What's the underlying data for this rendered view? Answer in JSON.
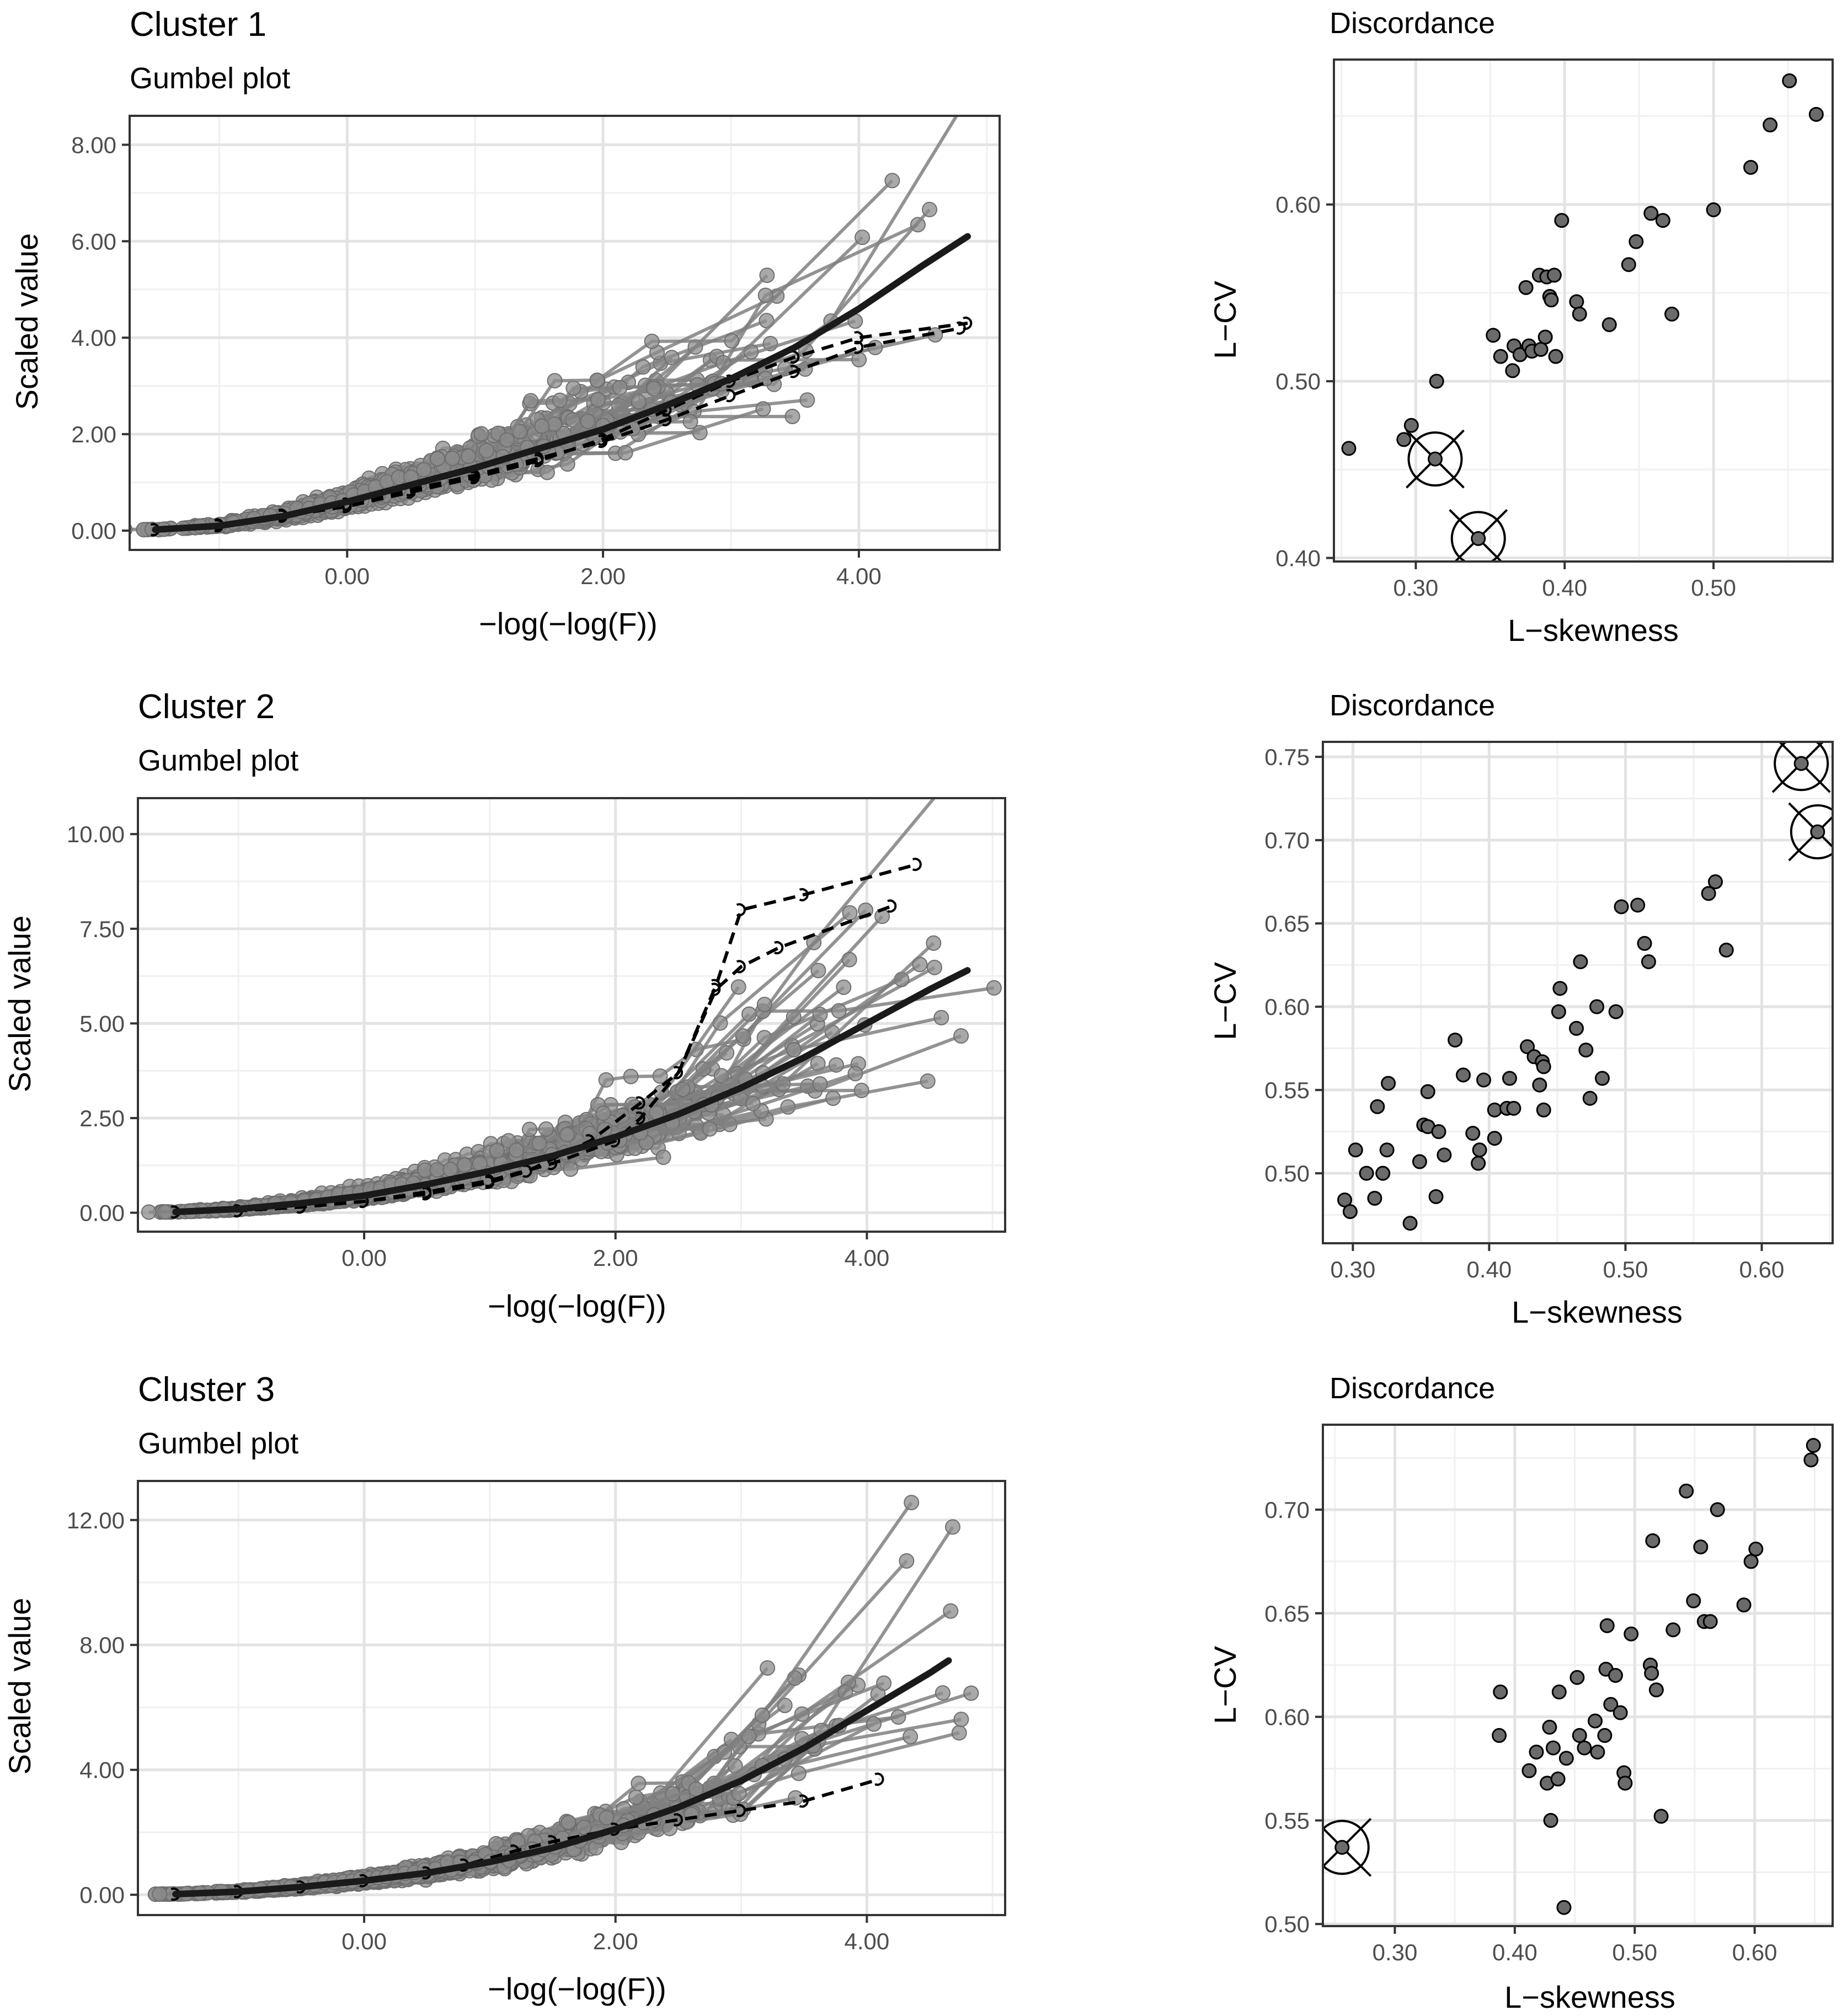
{
  "chart_data": [
    {
      "type": "line",
      "title": "Cluster 1",
      "subtitle": "Gumbel plot",
      "xlabel": "−log(−log(F))",
      "ylabel": "Scaled value",
      "xlim": [
        -1.7,
        5.1
      ],
      "ylim": [
        -0.4,
        8.6
      ],
      "x_ticks": [
        0,
        2,
        4
      ],
      "x_tick_labels": [
        "0.00",
        "2.00",
        "4.00"
      ],
      "y_ticks": [
        0,
        2,
        4,
        6,
        8
      ],
      "y_tick_labels": [
        "0.00",
        "2.00",
        "4.00",
        "6.00",
        "8.00"
      ],
      "grid": true,
      "series": [
        {
          "role": "fitted",
          "x": [
            -1.5,
            -1,
            -0.5,
            0,
            0.5,
            1,
            1.5,
            2,
            2.5,
            3,
            3.5,
            4,
            4.5,
            4.85
          ],
          "y": [
            0.02,
            0.1,
            0.3,
            0.6,
            0.95,
            1.3,
            1.7,
            2.1,
            2.6,
            3.15,
            3.8,
            4.6,
            5.5,
            6.1
          ]
        },
        {
          "role": "discordant",
          "x": [
            -1.5,
            -1,
            -0.5,
            0,
            0.5,
            1,
            1.5,
            2,
            2.5,
            3,
            3.5,
            4,
            4.8
          ],
          "y": [
            0.02,
            0.12,
            0.32,
            0.55,
            0.85,
            1.15,
            1.5,
            1.85,
            2.3,
            2.8,
            3.3,
            3.8,
            4.2
          ]
        },
        {
          "role": "discordant",
          "x": [
            -1.5,
            -1,
            -0.5,
            0,
            0.5,
            1,
            1.5,
            2,
            2.5,
            3,
            3.5,
            4,
            4.85
          ],
          "y": [
            0.02,
            0.1,
            0.3,
            0.5,
            0.8,
            1.1,
            1.45,
            1.9,
            2.5,
            3.1,
            3.6,
            4.0,
            4.3
          ]
        }
      ]
    },
    {
      "type": "scatter",
      "title": "Discordance",
      "xlabel": "L−skewness",
      "ylabel": "L−CV",
      "xlim": [
        0.245,
        0.58
      ],
      "ylim": [
        0.398,
        0.682
      ],
      "x_ticks": [
        0.3,
        0.4,
        0.5
      ],
      "x_tick_labels": [
        "0.30",
        "0.40",
        "0.50"
      ],
      "y_ticks": [
        0.4,
        0.5,
        0.6
      ],
      "y_tick_labels": [
        "0.40",
        "0.50",
        "0.60"
      ],
      "grid": true,
      "points": [
        [
          0.255,
          0.462
        ],
        [
          0.292,
          0.467
        ],
        [
          0.297,
          0.475
        ],
        [
          0.314,
          0.5
        ],
        [
          0.352,
          0.526
        ],
        [
          0.357,
          0.514
        ],
        [
          0.365,
          0.506
        ],
        [
          0.366,
          0.52
        ],
        [
          0.37,
          0.515
        ],
        [
          0.374,
          0.553
        ],
        [
          0.376,
          0.52
        ],
        [
          0.378,
          0.517
        ],
        [
          0.383,
          0.56
        ],
        [
          0.384,
          0.518
        ],
        [
          0.387,
          0.525
        ],
        [
          0.388,
          0.559
        ],
        [
          0.39,
          0.548
        ],
        [
          0.391,
          0.546
        ],
        [
          0.393,
          0.56
        ],
        [
          0.394,
          0.514
        ],
        [
          0.398,
          0.591
        ],
        [
          0.408,
          0.545
        ],
        [
          0.41,
          0.538
        ],
        [
          0.43,
          0.532
        ],
        [
          0.443,
          0.566
        ],
        [
          0.448,
          0.579
        ],
        [
          0.458,
          0.595
        ],
        [
          0.466,
          0.591
        ],
        [
          0.472,
          0.538
        ],
        [
          0.5,
          0.597
        ],
        [
          0.525,
          0.621
        ],
        [
          0.538,
          0.645
        ],
        [
          0.551,
          0.67
        ],
        [
          0.569,
          0.651
        ]
      ],
      "discordant_points": [
        [
          0.313,
          0.456
        ],
        [
          0.342,
          0.411
        ]
      ]
    },
    {
      "type": "line",
      "title": "Cluster 2",
      "subtitle": "Gumbel plot",
      "xlabel": "−log(−log(F))",
      "ylabel": "Scaled value",
      "xlim": [
        -1.8,
        5.1
      ],
      "ylim": [
        -0.5,
        10.95
      ],
      "x_ticks": [
        0,
        2,
        4
      ],
      "x_tick_labels": [
        "0.00",
        "2.00",
        "4.00"
      ],
      "y_ticks": [
        0,
        2.5,
        5,
        7.5,
        10
      ],
      "y_tick_labels": [
        "0.00",
        "2.50",
        "5.00",
        "7.50",
        "10.00"
      ],
      "grid": true,
      "series": [
        {
          "role": "fitted",
          "x": [
            -1.5,
            -1,
            -0.5,
            0,
            0.5,
            1,
            1.5,
            2,
            2.5,
            3,
            3.5,
            4,
            4.5,
            4.8
          ],
          "y": [
            0.02,
            0.1,
            0.25,
            0.45,
            0.75,
            1.1,
            1.5,
            2.0,
            2.6,
            3.3,
            4.1,
            5.0,
            5.9,
            6.4
          ]
        },
        {
          "role": "discordant",
          "x": [
            -1.5,
            -1,
            -0.5,
            0,
            0.5,
            1,
            1.3,
            1.8,
            2.2,
            2.5,
            2.8,
            3.0,
            3.5,
            4.4
          ],
          "y": [
            0.02,
            0.05,
            0.15,
            0.3,
            0.5,
            0.8,
            1.1,
            1.9,
            2.9,
            3.7,
            6.0,
            8.0,
            8.4,
            9.2
          ]
        },
        {
          "role": "discordant",
          "x": [
            -1.5,
            -1,
            -0.5,
            0,
            0.5,
            1,
            1.5,
            2,
            2.2,
            2.5,
            2.8,
            3.0,
            3.3,
            4.2
          ],
          "y": [
            0.02,
            0.05,
            0.15,
            0.3,
            0.55,
            0.85,
            1.3,
            1.9,
            2.5,
            3.7,
            5.9,
            6.5,
            7.0,
            8.1
          ]
        }
      ]
    },
    {
      "type": "scatter",
      "title": "Discordance",
      "xlabel": "L−skewness",
      "ylabel": "L−CV",
      "xlim": [
        0.278,
        0.652
      ],
      "ylim": [
        0.458,
        0.759
      ],
      "x_ticks": [
        0.3,
        0.4,
        0.5,
        0.6
      ],
      "x_tick_labels": [
        "0.30",
        "0.40",
        "0.50",
        "0.60"
      ],
      "y_ticks": [
        0.5,
        0.55,
        0.6,
        0.65,
        0.7,
        0.75
      ],
      "y_tick_labels": [
        "0.50",
        "0.55",
        "0.60",
        "0.65",
        "0.70",
        "0.75"
      ],
      "grid": true,
      "points": [
        [
          0.294,
          0.484
        ],
        [
          0.298,
          0.477
        ],
        [
          0.302,
          0.514
        ],
        [
          0.31,
          0.5
        ],
        [
          0.316,
          0.485
        ],
        [
          0.318,
          0.54
        ],
        [
          0.322,
          0.5
        ],
        [
          0.325,
          0.514
        ],
        [
          0.326,
          0.554
        ],
        [
          0.342,
          0.47
        ],
        [
          0.349,
          0.507
        ],
        [
          0.352,
          0.529
        ],
        [
          0.355,
          0.528
        ],
        [
          0.355,
          0.549
        ],
        [
          0.361,
          0.486
        ],
        [
          0.363,
          0.525
        ],
        [
          0.367,
          0.511
        ],
        [
          0.375,
          0.58
        ],
        [
          0.381,
          0.559
        ],
        [
          0.388,
          0.524
        ],
        [
          0.392,
          0.506
        ],
        [
          0.393,
          0.514
        ],
        [
          0.396,
          0.556
        ],
        [
          0.404,
          0.521
        ],
        [
          0.404,
          0.538
        ],
        [
          0.413,
          0.539
        ],
        [
          0.415,
          0.557
        ],
        [
          0.418,
          0.539
        ],
        [
          0.428,
          0.576
        ],
        [
          0.433,
          0.57
        ],
        [
          0.437,
          0.553
        ],
        [
          0.439,
          0.567
        ],
        [
          0.44,
          0.538
        ],
        [
          0.44,
          0.564
        ],
        [
          0.451,
          0.597
        ],
        [
          0.452,
          0.611
        ],
        [
          0.464,
          0.587
        ],
        [
          0.467,
          0.627
        ],
        [
          0.471,
          0.574
        ],
        [
          0.474,
          0.545
        ],
        [
          0.479,
          0.6
        ],
        [
          0.483,
          0.557
        ],
        [
          0.493,
          0.597
        ],
        [
          0.497,
          0.66
        ],
        [
          0.509,
          0.661
        ],
        [
          0.514,
          0.638
        ],
        [
          0.517,
          0.627
        ],
        [
          0.561,
          0.668
        ],
        [
          0.566,
          0.675
        ],
        [
          0.574,
          0.634
        ]
      ],
      "discordant_points": [
        [
          0.629,
          0.746
        ],
        [
          0.641,
          0.705
        ]
      ]
    },
    {
      "type": "line",
      "title": "Cluster 3",
      "subtitle": "Gumbel plot",
      "xlabel": "−log(−log(F))",
      "ylabel": "Scaled value",
      "xlim": [
        -1.8,
        5.1
      ],
      "ylim": [
        -0.65,
        13.25
      ],
      "x_ticks": [
        0,
        2,
        4
      ],
      "x_tick_labels": [
        "0.00",
        "2.00",
        "4.00"
      ],
      "y_ticks": [
        0,
        4,
        8,
        12
      ],
      "y_tick_labels": [
        "0.00",
        "4.00",
        "8.00",
        "12.00"
      ],
      "grid": true,
      "series": [
        {
          "role": "fitted",
          "x": [
            -1.5,
            -1,
            -0.5,
            0,
            0.5,
            1,
            1.5,
            2,
            2.5,
            3,
            3.5,
            4,
            4.5,
            4.65
          ],
          "y": [
            0.02,
            0.1,
            0.25,
            0.45,
            0.7,
            1.05,
            1.5,
            2.1,
            2.8,
            3.65,
            4.7,
            5.9,
            7.1,
            7.5
          ]
        },
        {
          "role": "discordant",
          "x": [
            -1.5,
            -1,
            -0.5,
            0,
            0.5,
            0.8,
            1.2,
            1.5,
            2,
            2.5,
            3,
            3.5,
            4.1
          ],
          "y": [
            0.02,
            0.1,
            0.25,
            0.45,
            0.7,
            0.95,
            1.4,
            1.7,
            2.1,
            2.4,
            2.7,
            3.0,
            3.7
          ]
        }
      ]
    },
    {
      "type": "scatter",
      "title": "Discordance",
      "xlabel": "L−skewness",
      "ylabel": "L−CV",
      "xlim": [
        0.24,
        0.665
      ],
      "ylim": [
        0.499,
        0.741
      ],
      "x_ticks": [
        0.3,
        0.4,
        0.5,
        0.6
      ],
      "x_tick_labels": [
        "0.30",
        "0.40",
        "0.50",
        "0.60"
      ],
      "y_ticks": [
        0.5,
        0.55,
        0.6,
        0.65,
        0.7
      ],
      "y_tick_labels": [
        "0.50",
        "0.55",
        "0.60",
        "0.65",
        "0.70"
      ],
      "grid": true,
      "points": [
        [
          0.387,
          0.591
        ],
        [
          0.388,
          0.612
        ],
        [
          0.412,
          0.574
        ],
        [
          0.418,
          0.583
        ],
        [
          0.427,
          0.568
        ],
        [
          0.429,
          0.595
        ],
        [
          0.43,
          0.55
        ],
        [
          0.432,
          0.585
        ],
        [
          0.436,
          0.57
        ],
        [
          0.437,
          0.612
        ],
        [
          0.441,
          0.508
        ],
        [
          0.443,
          0.58
        ],
        [
          0.452,
          0.619
        ],
        [
          0.454,
          0.591
        ],
        [
          0.458,
          0.585
        ],
        [
          0.467,
          0.598
        ],
        [
          0.469,
          0.583
        ],
        [
          0.475,
          0.591
        ],
        [
          0.476,
          0.623
        ],
        [
          0.477,
          0.644
        ],
        [
          0.48,
          0.606
        ],
        [
          0.484,
          0.62
        ],
        [
          0.488,
          0.602
        ],
        [
          0.491,
          0.573
        ],
        [
          0.492,
          0.568
        ],
        [
          0.497,
          0.64
        ],
        [
          0.513,
          0.625
        ],
        [
          0.514,
          0.621
        ],
        [
          0.515,
          0.685
        ],
        [
          0.518,
          0.613
        ],
        [
          0.522,
          0.552
        ],
        [
          0.532,
          0.642
        ],
        [
          0.543,
          0.709
        ],
        [
          0.549,
          0.656
        ],
        [
          0.555,
          0.682
        ],
        [
          0.558,
          0.646
        ],
        [
          0.563,
          0.646
        ],
        [
          0.569,
          0.7
        ],
        [
          0.591,
          0.654
        ],
        [
          0.597,
          0.675
        ],
        [
          0.601,
          0.681
        ],
        [
          0.647,
          0.724
        ],
        [
          0.649,
          0.731
        ]
      ],
      "discordant_points": [
        [
          0.256,
          0.537
        ]
      ]
    }
  ]
}
